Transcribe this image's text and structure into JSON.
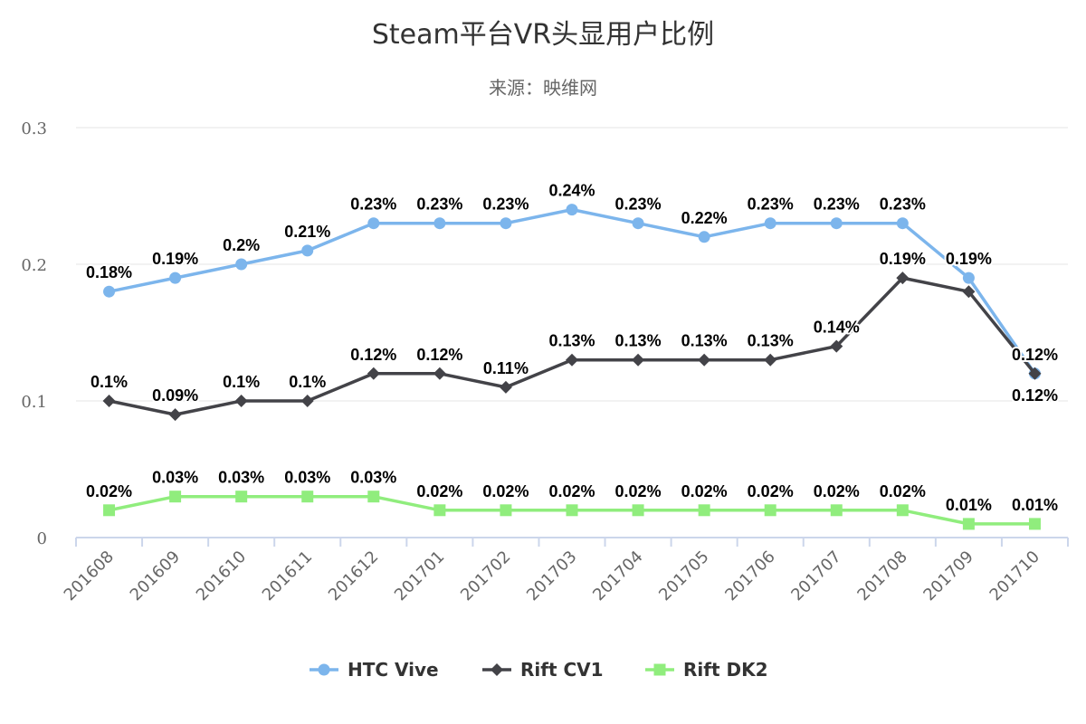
{
  "chart_data": {
    "type": "line",
    "title": "Steam平台VR头显用户比例",
    "subtitle": "来源：映维网",
    "xlabel": "",
    "ylabel": "",
    "ylim": [
      0,
      0.3
    ],
    "yticks": [
      "0",
      "0.1",
      "0.2",
      "0.3"
    ],
    "ytick_values": [
      0,
      0.1,
      0.2,
      0.3
    ],
    "grid": true,
    "legend_position": "bottom-center",
    "label_suffix": "%",
    "categories": [
      "201608",
      "201609",
      "201610",
      "201611",
      "201612",
      "201701",
      "201702",
      "201703",
      "201704",
      "201705",
      "201706",
      "201707",
      "201708",
      "201709",
      "201710"
    ],
    "series": [
      {
        "name": "HTC Vive",
        "color": "#7cb5ec",
        "marker": "circle",
        "values": [
          0.18,
          0.19,
          0.2,
          0.21,
          0.23,
          0.23,
          0.23,
          0.24,
          0.23,
          0.22,
          0.23,
          0.23,
          0.23,
          0.19,
          0.12
        ],
        "hidden_labels": []
      },
      {
        "name": "Rift CV1",
        "color": "#434348",
        "marker": "diamond",
        "values": [
          0.1,
          0.09,
          0.1,
          0.1,
          0.12,
          0.12,
          0.11,
          0.13,
          0.13,
          0.13,
          0.13,
          0.14,
          0.19,
          0.18,
          0.12
        ],
        "hidden_labels": [
          13
        ]
      },
      {
        "name": "Rift DK2",
        "color": "#90ed7d",
        "marker": "square",
        "values": [
          0.02,
          0.03,
          0.03,
          0.03,
          0.03,
          0.02,
          0.02,
          0.02,
          0.02,
          0.02,
          0.02,
          0.02,
          0.02,
          0.01,
          0.01
        ],
        "hidden_labels": []
      }
    ]
  }
}
